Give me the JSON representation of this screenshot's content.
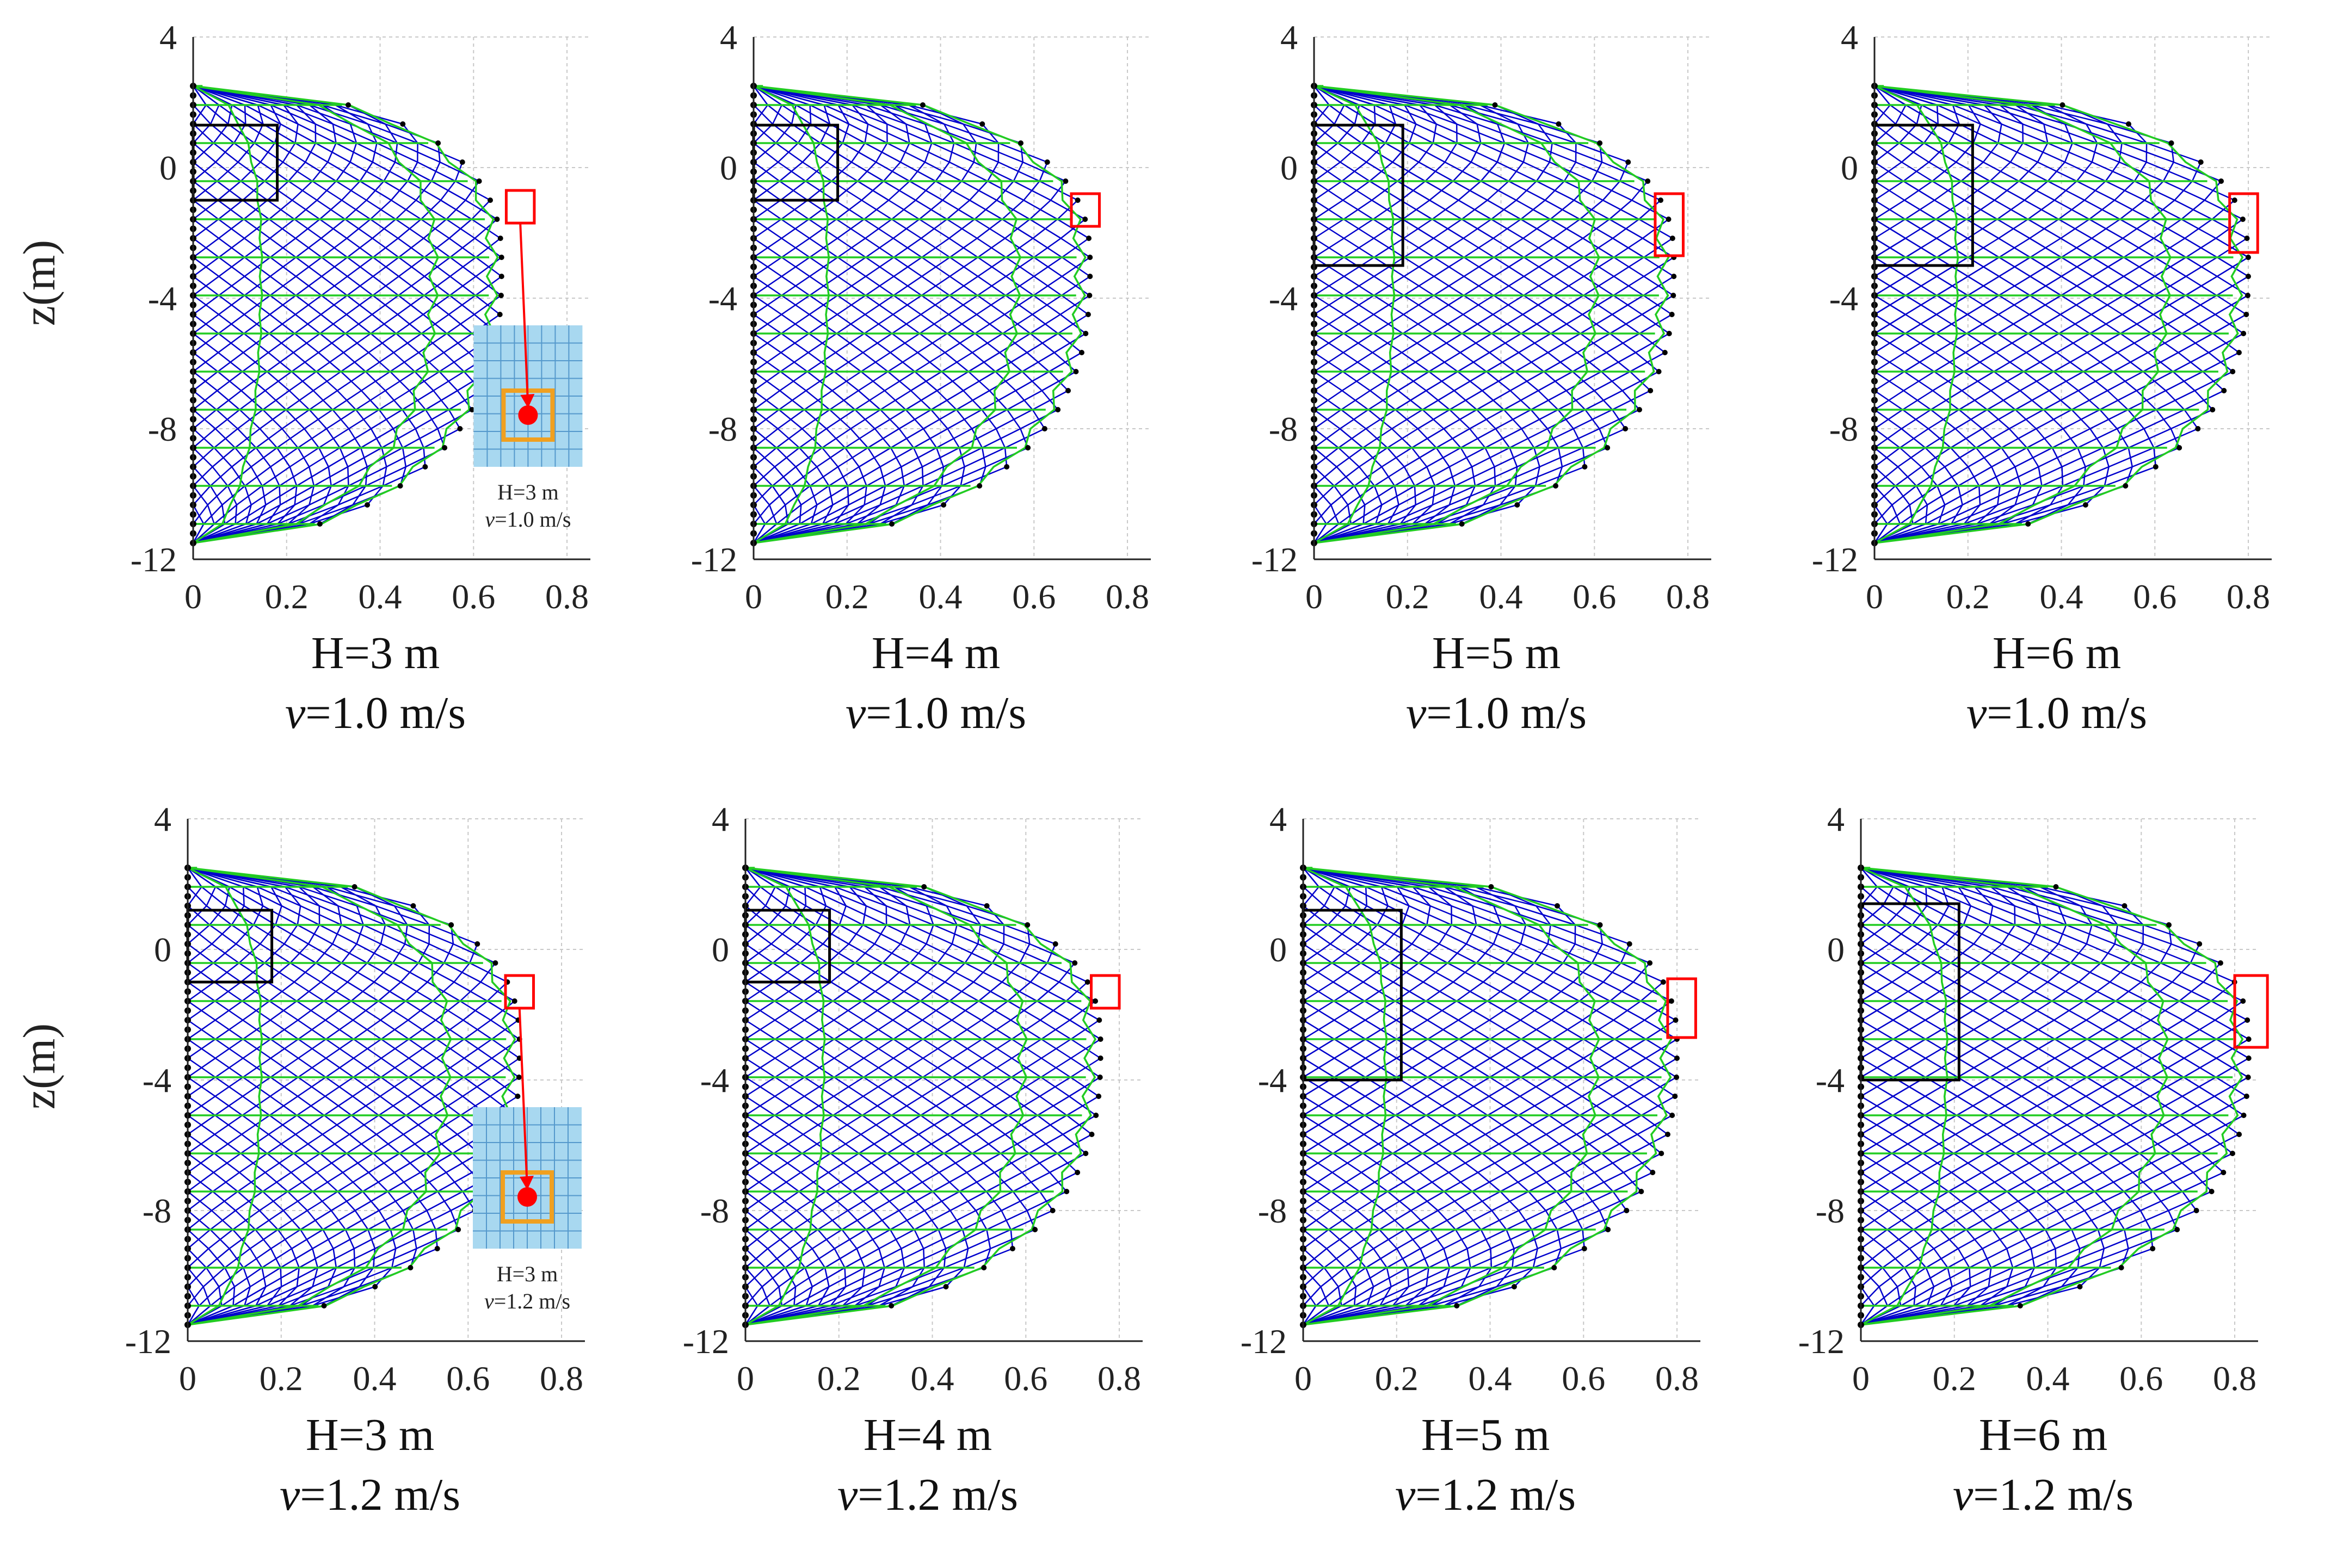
{
  "figure": {
    "ylabel": "z(m)",
    "caption_speed_symbol": "v",
    "colors": {
      "net": "#0000cc",
      "frame": "#22cc22",
      "box": "#000000",
      "highlight": "#ff0000",
      "grid": "#c8c8c8",
      "inset_bg": "#a8d8f0",
      "inset_frame": "#f0a020"
    }
  },
  "chart_data": [
    {
      "type": "line",
      "title_line1": "H=3 m",
      "title_line2_value": "=1.0 m/s",
      "xticks": [
        "0",
        "0.2",
        "0.4",
        "0.6",
        "0.8"
      ],
      "yticks": [
        "4",
        "0",
        "-4",
        "-8",
        "-12"
      ],
      "xlim": [
        0,
        0.85
      ],
      "ylim": [
        -12,
        4
      ],
      "max_displacement": 0.66,
      "box": {
        "x": [
          0,
          0.18
        ],
        "z": [
          -1.0,
          1.3
        ]
      },
      "highlight": {
        "x": [
          0.67,
          0.73
        ],
        "z": [
          -1.7,
          -0.7
        ]
      },
      "inset": {
        "label1": "H=3 m",
        "label2_value": "=1.0 m/s"
      }
    },
    {
      "type": "line",
      "title_line1": "H=4 m",
      "title_line2_value": "=1.0 m/s",
      "xticks": [
        "0",
        "0.2",
        "0.4",
        "0.6",
        "0.8"
      ],
      "yticks": [
        "4",
        "0",
        "-4",
        "-8",
        "-12"
      ],
      "xlim": [
        0,
        0.85
      ],
      "ylim": [
        -12,
        4
      ],
      "max_displacement": 0.72,
      "box": {
        "x": [
          0,
          0.18
        ],
        "z": [
          -1.0,
          1.3
        ]
      },
      "highlight": {
        "x": [
          0.68,
          0.74
        ],
        "z": [
          -1.8,
          -0.8
        ]
      }
    },
    {
      "type": "line",
      "title_line1": "H=5 m",
      "title_line2_value": "=1.0 m/s",
      "xticks": [
        "0",
        "0.2",
        "0.4",
        "0.6",
        "0.8"
      ],
      "yticks": [
        "4",
        "0",
        "-4",
        "-8",
        "-12"
      ],
      "xlim": [
        0,
        0.85
      ],
      "ylim": [
        -12,
        4
      ],
      "max_displacement": 0.77,
      "box": {
        "x": [
          0,
          0.19
        ],
        "z": [
          -3.0,
          1.3
        ]
      },
      "highlight": {
        "x": [
          0.73,
          0.79
        ],
        "z": [
          -2.7,
          -0.8
        ]
      }
    },
    {
      "type": "line",
      "title_line1": "H=6 m",
      "title_line2_value": "=1.0 m/s",
      "xticks": [
        "0",
        "0.2",
        "0.4",
        "0.6",
        "0.8"
      ],
      "yticks": [
        "4",
        "0",
        "-4",
        "-8",
        "-12"
      ],
      "xlim": [
        0,
        0.85
      ],
      "ylim": [
        -12,
        4
      ],
      "max_displacement": 0.8,
      "box": {
        "x": [
          0,
          0.21
        ],
        "z": [
          -3.0,
          1.3
        ]
      },
      "highlight": {
        "x": [
          0.76,
          0.82
        ],
        "z": [
          -2.6,
          -0.8
        ]
      }
    },
    {
      "type": "line",
      "title_line1": "H=3 m",
      "title_line2_value": "=1.2 m/s",
      "xticks": [
        "0",
        "0.2",
        "0.4",
        "0.6",
        "0.8"
      ],
      "yticks": [
        "4",
        "0",
        "-4",
        "-8",
        "-12"
      ],
      "xlim": [
        0,
        0.85
      ],
      "ylim": [
        -12,
        4
      ],
      "max_displacement": 0.71,
      "box": {
        "x": [
          0,
          0.18
        ],
        "z": [
          -1.0,
          1.2
        ]
      },
      "highlight": {
        "x": [
          0.68,
          0.74
        ],
        "z": [
          -1.8,
          -0.8
        ]
      },
      "inset": {
        "label1": "H=3 m",
        "label2_value": "=1.2 m/s"
      }
    },
    {
      "type": "line",
      "title_line1": "H=4 m",
      "title_line2_value": "=1.2 m/s",
      "xticks": [
        "0",
        "0.2",
        "0.4",
        "0.6",
        "0.8"
      ],
      "yticks": [
        "4",
        "0",
        "-4",
        "-8",
        "-12"
      ],
      "xlim": [
        0,
        0.85
      ],
      "ylim": [
        -12,
        4
      ],
      "max_displacement": 0.76,
      "box": {
        "x": [
          0,
          0.18
        ],
        "z": [
          -1.0,
          1.2
        ]
      },
      "highlight": {
        "x": [
          0.74,
          0.8
        ],
        "z": [
          -1.8,
          -0.8
        ]
      }
    },
    {
      "type": "line",
      "title_line1": "H=5 m",
      "title_line2_value": "=1.2 m/s",
      "xticks": [
        "0",
        "0.2",
        "0.4",
        "0.6",
        "0.8"
      ],
      "yticks": [
        "4",
        "0",
        "-4",
        "-8",
        "-12"
      ],
      "xlim": [
        0,
        0.85
      ],
      "ylim": [
        -12,
        4
      ],
      "max_displacement": 0.8,
      "box": {
        "x": [
          0,
          0.21
        ],
        "z": [
          -4.0,
          1.2
        ]
      },
      "highlight": {
        "x": [
          0.78,
          0.84
        ],
        "z": [
          -2.7,
          -0.9
        ]
      }
    },
    {
      "type": "line",
      "title_line1": "H=6 m",
      "title_line2_value": "=1.2 m/s",
      "xticks": [
        "0",
        "0.2",
        "0.4",
        "0.6",
        "0.8"
      ],
      "yticks": [
        "4",
        "0",
        "-4",
        "-8",
        "-12"
      ],
      "xlim": [
        0,
        0.85
      ],
      "ylim": [
        -12,
        4
      ],
      "max_displacement": 0.83,
      "box": {
        "x": [
          0,
          0.21
        ],
        "z": [
          -4.0,
          1.4
        ]
      },
      "highlight": {
        "x": [
          0.8,
          0.87
        ],
        "z": [
          -3.0,
          -0.8
        ]
      }
    }
  ]
}
